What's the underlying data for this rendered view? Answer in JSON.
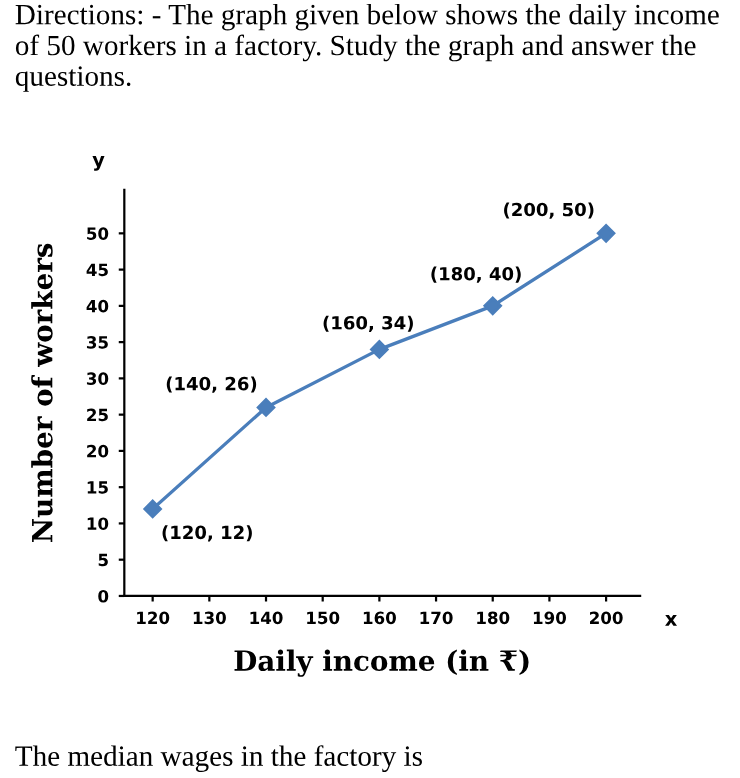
{
  "chart_data": {
    "type": "line",
    "title": "Directions: - The graph given below shows the daily income of 50 workers in a factory. Study the graph and answer the questions.",
    "xlabel": "Daily income (in ₹)",
    "ylabel": "Number of workers",
    "x": [
      120,
      140,
      160,
      180,
      200
    ],
    "series": [
      {
        "color": "#4a7ebb",
        "values": [
          12,
          26,
          34,
          40,
          50
        ]
      }
    ],
    "marker": "diamond",
    "line_style": "solid",
    "xlim": [
      115,
      206
    ],
    "ylim": [
      0,
      56
    ],
    "xticks": [
      120,
      130,
      140,
      150,
      160,
      170,
      180,
      190,
      200
    ],
    "yticks": [
      0,
      5,
      10,
      15,
      20,
      25,
      30,
      35,
      40,
      45,
      50
    ],
    "grid": false,
    "legend": false,
    "annotations": [
      {
        "text": "(120, 12)",
        "x": 120,
        "y": 12
      },
      {
        "text": "(140, 26)",
        "x": 140,
        "y": 26
      },
      {
        "text": "(160, 34)",
        "x": 160,
        "y": 34
      },
      {
        "text": "(180, 40)",
        "x": 180,
        "y": 40
      },
      {
        "text": "(200, 50)",
        "x": 200,
        "y": 50
      },
      "x",
      "y",
      "The median wages in the factory is"
    ]
  }
}
